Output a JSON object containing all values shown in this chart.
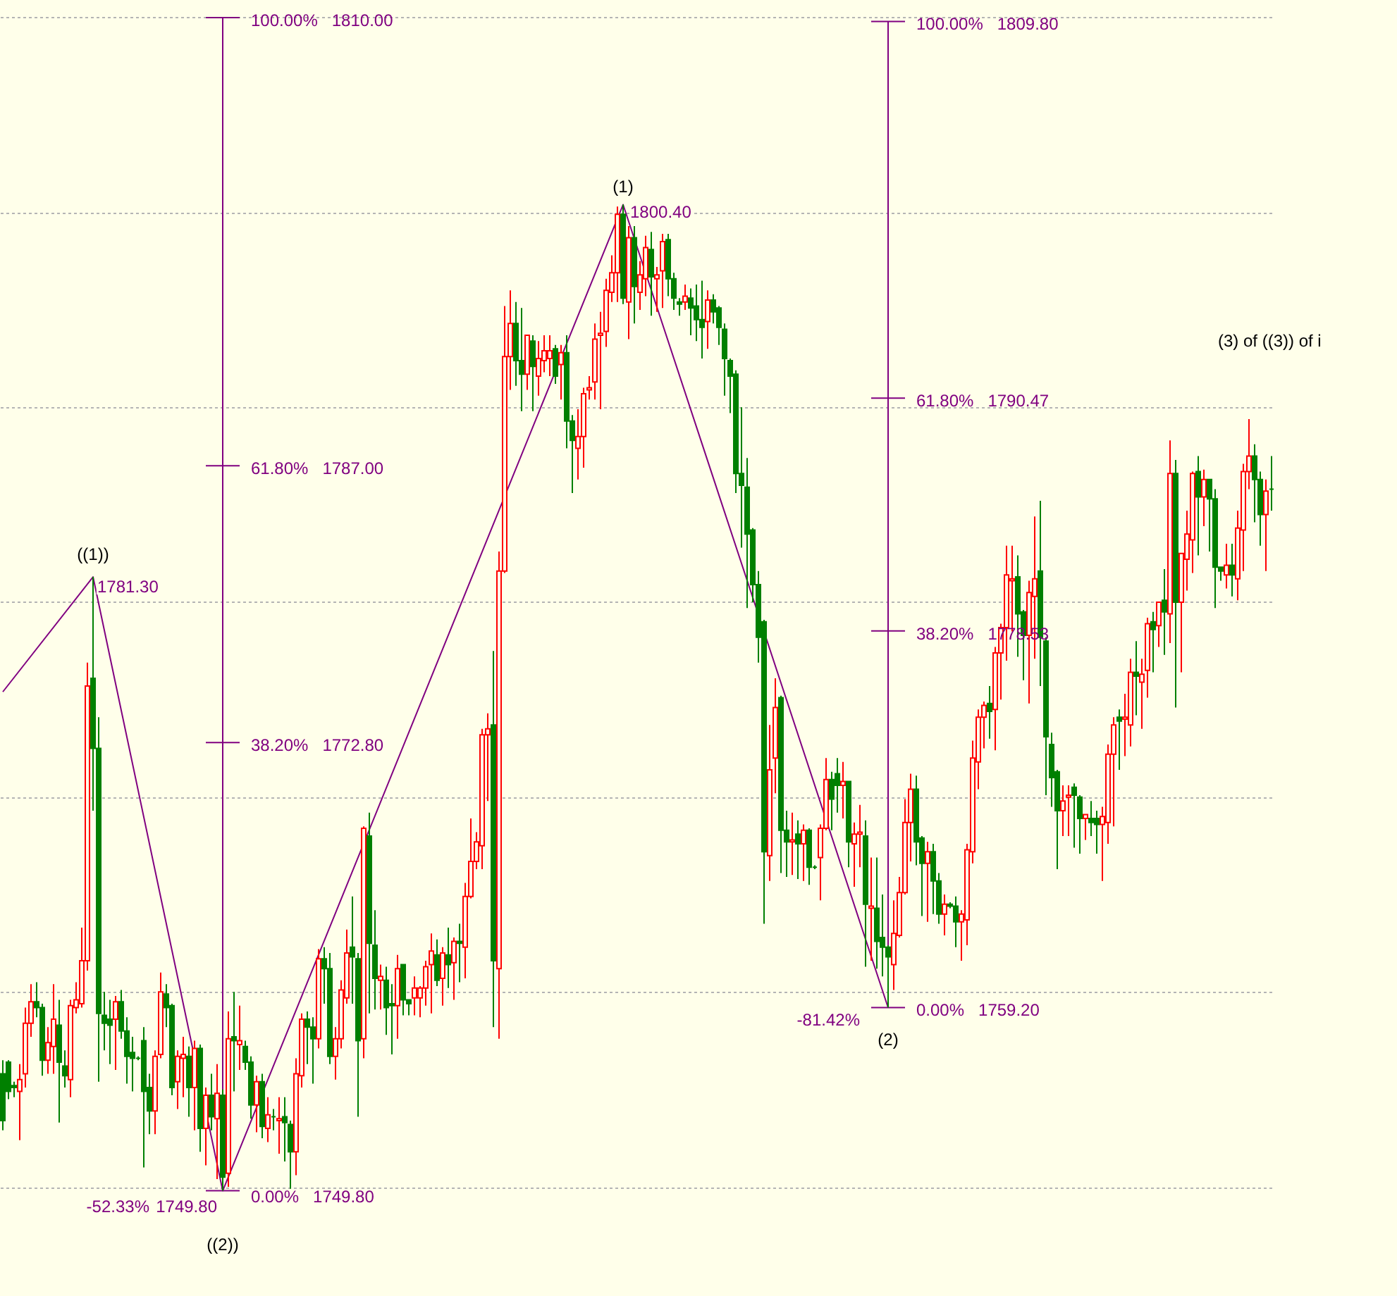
{
  "chart_data": {
    "type": "candlestick",
    "categories": [
      null,
      null,
      null,
      null,
      null,
      null,
      null,
      null,
      null,
      null,
      null,
      null,
      null,
      null,
      null,
      null,
      null,
      null,
      null,
      null,
      null,
      null,
      null,
      null,
      null,
      null,
      null,
      null,
      null,
      null,
      null,
      null,
      null,
      null,
      null,
      null,
      null,
      null,
      null,
      null,
      null,
      null,
      null,
      null,
      null,
      null,
      null,
      null,
      null,
      null,
      null,
      null,
      null,
      null,
      null,
      null,
      null,
      null,
      null,
      null,
      null,
      null,
      null,
      null,
      null,
      null,
      null,
      null,
      null,
      null,
      null,
      null,
      null,
      null,
      null,
      null,
      null,
      null,
      null,
      null,
      null,
      null,
      null,
      null,
      null,
      null,
      null,
      null,
      null,
      null,
      null,
      null,
      null,
      null,
      null,
      null,
      null,
      null,
      null,
      null,
      null,
      null,
      null,
      null,
      null,
      null,
      null,
      null,
      null,
      null,
      null,
      null,
      null,
      null,
      null,
      null,
      null,
      null,
      null,
      null,
      null,
      null,
      null,
      null,
      null,
      null,
      null,
      null,
      null,
      null,
      null,
      null,
      null,
      null,
      null,
      null,
      null,
      null,
      null,
      null,
      null,
      null,
      null,
      null,
      null,
      null,
      null,
      null,
      null,
      null,
      null,
      null,
      null,
      null,
      null,
      null,
      null,
      null,
      null,
      null,
      null,
      null,
      null,
      null,
      null,
      null,
      null,
      null,
      null,
      null,
      null,
      null,
      null,
      null,
      null,
      null,
      null,
      null,
      null,
      null,
      null,
      null,
      null,
      null,
      null,
      null,
      null,
      null,
      null,
      null,
      null,
      null,
      null,
      null,
      null,
      null,
      null,
      null,
      null,
      null,
      null,
      null,
      null,
      null,
      null,
      null,
      null,
      null,
      null,
      null,
      null,
      null,
      null,
      null,
      null,
      null,
      null,
      null,
      null,
      null,
      null,
      null,
      null,
      null,
      null,
      null
    ],
    "ohlc": [
      [
        1755.8,
        1756.5,
        1752.9,
        1753.4
      ],
      [
        1756.4,
        1756.5,
        1754.5,
        1754.9
      ],
      [
        1755.2,
        1755.4,
        1754.6,
        1755.1
      ],
      [
        1754.9,
        1756.3,
        1752.4,
        1755.5
      ],
      [
        1755.8,
        1759.2,
        1755.1,
        1758.4
      ],
      [
        1758.4,
        1760.4,
        1757.7,
        1759.5
      ],
      [
        1759.5,
        1760.5,
        1758.7,
        1759.2
      ],
      [
        1759.2,
        1759.4,
        1755.7,
        1756.5
      ],
      [
        1756.5,
        1758.2,
        1755.8,
        1757.4
      ],
      [
        1757.2,
        1760.4,
        1755.8,
        1758.6
      ],
      [
        1758.3,
        1759.6,
        1753.3,
        1756.4
      ],
      [
        1756.2,
        1757.0,
        1755.1,
        1755.7
      ],
      [
        1755.5,
        1759.6,
        1754.6,
        1759.3
      ],
      [
        1759.2,
        1760.5,
        1758.9,
        1759.6
      ],
      [
        1759.4,
        1763.3,
        1759.2,
        1761.6
      ],
      [
        1761.6,
        1776.9,
        1761.1,
        1775.7
      ],
      [
        1776.1,
        1781.3,
        1769.3,
        1772.5
      ],
      [
        1772.5,
        1774.1,
        1755.4,
        1758.9
      ],
      [
        1758.8,
        1760.0,
        1757.0,
        1758.4
      ],
      [
        1758.6,
        1759.6,
        1756.3,
        1758.3
      ],
      [
        1758.6,
        1759.8,
        1756.0,
        1759.5
      ],
      [
        1759.5,
        1760.1,
        1757.6,
        1758.0
      ],
      [
        1758.0,
        1758.7,
        1755.3,
        1756.7
      ],
      [
        1756.9,
        1757.7,
        1754.9,
        1756.6
      ],
      [
        1756.6,
        1756.7,
        1756.5,
        1756.6
      ],
      [
        1757.5,
        1758.2,
        1751.0,
        1754.9
      ],
      [
        1755.1,
        1755.8,
        1752.7,
        1753.9
      ],
      [
        1753.9,
        1757.0,
        1752.7,
        1756.7
      ],
      [
        1756.8,
        1761.0,
        1756.6,
        1760.0
      ],
      [
        1759.9,
        1760.4,
        1758.2,
        1759.2
      ],
      [
        1759.3,
        1759.4,
        1754.7,
        1755.1
      ],
      [
        1755.4,
        1757.0,
        1754.0,
        1756.7
      ],
      [
        1756.6,
        1757.7,
        1754.6,
        1756.8
      ],
      [
        1756.7,
        1757.2,
        1753.6,
        1755.1
      ],
      [
        1755.1,
        1757.5,
        1752.9,
        1757.1
      ],
      [
        1757.1,
        1757.3,
        1751.8,
        1753.0
      ],
      [
        1753.0,
        1755.1,
        1751.1,
        1754.7
      ],
      [
        1754.7,
        1755.8,
        1752.9,
        1753.6
      ],
      [
        1753.5,
        1756.3,
        1750.4,
        1754.8
      ],
      [
        1754.7,
        1755.0,
        1749.8,
        1750.5
      ],
      [
        1750.7,
        1759.0,
        1750.0,
        1757.6
      ],
      [
        1757.7,
        1760.0,
        1754.9,
        1757.5
      ],
      [
        1757.3,
        1759.3,
        1756.0,
        1757.5
      ],
      [
        1757.2,
        1757.5,
        1756.0,
        1756.4
      ],
      [
        1756.4,
        1756.7,
        1753.5,
        1754.2
      ],
      [
        1754.2,
        1755.7,
        1752.8,
        1755.4
      ],
      [
        1755.4,
        1755.8,
        1752.5,
        1753.1
      ],
      [
        1753.0,
        1754.6,
        1752.3,
        1753.7
      ],
      [
        1753.6,
        1754.0,
        1752.9,
        1753.6
      ],
      [
        1753.4,
        1754.6,
        1751.7,
        1753.5
      ],
      [
        1753.6,
        1754.6,
        1751.3,
        1753.3
      ],
      [
        1753.2,
        1753.4,
        1749.9,
        1751.8
      ],
      [
        1751.8,
        1756.6,
        1750.6,
        1755.8
      ],
      [
        1755.7,
        1758.9,
        1755.1,
        1758.6
      ],
      [
        1758.6,
        1759.0,
        1756.3,
        1758.2
      ],
      [
        1758.2,
        1758.7,
        1755.3,
        1757.6
      ],
      [
        1757.6,
        1762.2,
        1757.1,
        1761.7
      ],
      [
        1761.7,
        1762.3,
        1759.4,
        1761.2
      ],
      [
        1761.2,
        1762.0,
        1756.3,
        1756.7
      ],
      [
        1756.7,
        1758.2,
        1755.5,
        1757.6
      ],
      [
        1757.6,
        1760.6,
        1757.1,
        1760.1
      ],
      [
        1759.7,
        1763.2,
        1759.4,
        1762.0
      ],
      [
        1762.3,
        1764.9,
        1759.4,
        1761.8
      ],
      [
        1761.7,
        1762.0,
        1753.6,
        1757.5
      ],
      [
        1757.6,
        1768.5,
        1756.6,
        1768.4
      ],
      [
        1768.0,
        1769.2,
        1758.9,
        1762.5
      ],
      [
        1762.4,
        1764.2,
        1759.1,
        1760.7
      ],
      [
        1760.6,
        1761.4,
        1759.1,
        1760.8
      ],
      [
        1760.6,
        1761.3,
        1757.8,
        1759.2
      ],
      [
        1759.4,
        1760.4,
        1756.8,
        1759.3
      ],
      [
        1759.3,
        1761.9,
        1757.6,
        1761.2
      ],
      [
        1761.4,
        1761.4,
        1758.8,
        1759.6
      ],
      [
        1759.6,
        1759.6,
        1758.8,
        1759.4
      ],
      [
        1759.7,
        1760.8,
        1758.8,
        1760.2
      ],
      [
        1759.7,
        1760.3,
        1758.7,
        1760.2
      ],
      [
        1760.2,
        1761.6,
        1759.3,
        1761.3
      ],
      [
        1761.4,
        1763.0,
        1758.9,
        1762.1
      ],
      [
        1761.9,
        1762.7,
        1760.3,
        1760.6
      ],
      [
        1760.7,
        1762.3,
        1759.3,
        1762.0
      ],
      [
        1761.9,
        1763.3,
        1760.2,
        1761.4
      ],
      [
        1761.5,
        1762.8,
        1759.6,
        1762.6
      ],
      [
        1762.6,
        1763.5,
        1760.5,
        1762.5
      ],
      [
        1762.3,
        1765.6,
        1760.7,
        1764.9
      ],
      [
        1764.9,
        1768.9,
        1764.8,
        1766.7
      ],
      [
        1766.7,
        1768.2,
        1766.3,
        1767.7
      ],
      [
        1767.5,
        1773.5,
        1766.3,
        1773.2
      ],
      [
        1773.2,
        1774.3,
        1769.8,
        1773.5
      ],
      [
        1773.7,
        1777.5,
        1758.2,
        1761.6
      ],
      [
        1761.2,
        1782.6,
        1757.6,
        1781.6
      ],
      [
        1781.6,
        1795.2,
        1781.5,
        1792.6
      ],
      [
        1792.6,
        1796.0,
        1790.9,
        1794.3
      ],
      [
        1794.3,
        1795.4,
        1791.1,
        1792.4
      ],
      [
        1792.4,
        1795.1,
        1789.8,
        1791.7
      ],
      [
        1791.7,
        1793.7,
        1790.9,
        1793.7
      ],
      [
        1793.4,
        1793.7,
        1789.8,
        1792.1
      ],
      [
        1791.6,
        1793.4,
        1790.6,
        1792.5
      ],
      [
        1792.4,
        1793.7,
        1791.8,
        1792.9
      ],
      [
        1792.5,
        1793.7,
        1791.6,
        1792.9
      ],
      [
        1793.0,
        1793.2,
        1791.2,
        1791.6
      ],
      [
        1792.2,
        1793.2,
        1790.4,
        1792.8
      ],
      [
        1792.8,
        1793.7,
        1787.9,
        1789.3
      ],
      [
        1789.3,
        1789.6,
        1785.6,
        1788.3
      ],
      [
        1787.9,
        1789.9,
        1786.3,
        1788.5
      ],
      [
        1788.5,
        1791.0,
        1786.9,
        1790.7
      ],
      [
        1790.9,
        1791.6,
        1790.4,
        1791.0
      ],
      [
        1791.3,
        1794.3,
        1790.4,
        1793.5
      ],
      [
        1793.7,
        1794.9,
        1789.9,
        1793.8
      ],
      [
        1793.9,
        1796.6,
        1793.1,
        1796.0
      ],
      [
        1795.9,
        1797.8,
        1795.4,
        1796.9
      ],
      [
        1796.9,
        1800.3,
        1795.4,
        1799.9
      ],
      [
        1799.9,
        1800.4,
        1795.3,
        1795.6
      ],
      [
        1795.4,
        1799.3,
        1793.5,
        1798.7
      ],
      [
        1798.7,
        1799.3,
        1794.3,
        1796.2
      ],
      [
        1795.9,
        1797.5,
        1795.0,
        1796.8
      ],
      [
        1796.6,
        1798.8,
        1795.7,
        1798.2
      ],
      [
        1798.1,
        1799.0,
        1794.7,
        1796.7
      ],
      [
        1796.6,
        1797.2,
        1794.9,
        1796.8
      ],
      [
        1797.0,
        1798.9,
        1795.1,
        1798.5
      ],
      [
        1798.6,
        1798.9,
        1795.7,
        1796.6
      ],
      [
        1796.6,
        1796.9,
        1795.0,
        1795.6
      ],
      [
        1795.4,
        1795.6,
        1794.7,
        1795.3
      ],
      [
        1795.4,
        1796.3,
        1795.0,
        1795.7
      ],
      [
        1795.6,
        1796.1,
        1793.7,
        1795.1
      ],
      [
        1795.2,
        1796.3,
        1793.4,
        1794.5
      ],
      [
        1794.5,
        1796.5,
        1792.5,
        1794.1
      ],
      [
        1794.4,
        1796.0,
        1793.0,
        1795.5
      ],
      [
        1795.5,
        1795.8,
        1794.3,
        1794.9
      ],
      [
        1795.1,
        1795.2,
        1793.2,
        1794.1
      ],
      [
        1794.0,
        1794.3,
        1790.6,
        1792.5
      ],
      [
        1792.4,
        1792.5,
        1789.7,
        1791.6
      ],
      [
        1791.7,
        1791.9,
        1785.6,
        1786.6
      ],
      [
        1786.6,
        1790.0,
        1782.8,
        1786.0
      ],
      [
        1785.9,
        1787.4,
        1779.7,
        1783.5
      ],
      [
        1783.7,
        1783.8,
        1780.0,
        1780.9
      ],
      [
        1780.9,
        1781.6,
        1776.9,
        1778.2
      ],
      [
        1779.0,
        1779.1,
        1763.5,
        1767.2
      ],
      [
        1767.0,
        1773.7,
        1765.7,
        1771.4
      ],
      [
        1772.0,
        1776.1,
        1770.2,
        1774.6
      ],
      [
        1775.1,
        1775.2,
        1766.1,
        1768.3
      ],
      [
        1768.3,
        1769.3,
        1765.9,
        1767.7
      ],
      [
        1767.7,
        1769.2,
        1766.0,
        1767.8
      ],
      [
        1768.1,
        1768.8,
        1765.8,
        1767.6
      ],
      [
        1767.6,
        1768.6,
        1765.7,
        1768.3
      ],
      [
        1768.3,
        1768.4,
        1765.5,
        1766.4
      ],
      [
        1766.4,
        1766.5,
        1766.3,
        1766.4
      ],
      [
        1766.9,
        1768.6,
        1764.7,
        1768.4
      ],
      [
        1768.4,
        1772.0,
        1768.3,
        1770.9
      ],
      [
        1770.9,
        1771.3,
        1768.3,
        1769.9
      ],
      [
        1771.2,
        1772.0,
        1769.2,
        1770.6
      ],
      [
        1770.6,
        1771.8,
        1768.9,
        1770.8
      ],
      [
        1770.8,
        1770.8,
        1766.4,
        1767.7
      ],
      [
        1767.6,
        1768.7,
        1765.4,
        1768.1
      ],
      [
        1768.1,
        1769.6,
        1766.4,
        1768.2
      ],
      [
        1768.0,
        1768.8,
        1761.3,
        1764.5
      ],
      [
        1764.3,
        1766.9,
        1761.6,
        1764.4
      ],
      [
        1764.3,
        1766.9,
        1761.2,
        1762.6
      ],
      [
        1762.8,
        1765.0,
        1760.8,
        1762.3
      ],
      [
        1762.3,
        1762.4,
        1759.2,
        1761.8
      ],
      [
        1761.4,
        1764.7,
        1760.1,
        1763.0
      ],
      [
        1762.9,
        1765.9,
        1762.8,
        1765.1
      ],
      [
        1765.1,
        1769.9,
        1765.0,
        1768.7
      ],
      [
        1768.7,
        1771.2,
        1766.7,
        1770.4
      ],
      [
        1770.4,
        1771.1,
        1766.5,
        1767.7
      ],
      [
        1767.9,
        1768.0,
        1763.9,
        1766.6
      ],
      [
        1766.6,
        1767.7,
        1763.6,
        1767.2
      ],
      [
        1767.2,
        1767.6,
        1764.0,
        1765.7
      ],
      [
        1765.7,
        1766.1,
        1763.5,
        1764.0
      ],
      [
        1764.0,
        1765.0,
        1762.9,
        1764.5
      ],
      [
        1764.5,
        1764.6,
        1764.3,
        1764.4
      ],
      [
        1764.4,
        1764.9,
        1762.3,
        1763.6
      ],
      [
        1763.6,
        1764.2,
        1761.6,
        1764.0
      ],
      [
        1763.7,
        1767.6,
        1762.4,
        1767.3
      ],
      [
        1767.2,
        1772.9,
        1766.6,
        1772.0
      ],
      [
        1771.8,
        1774.5,
        1770.4,
        1774.1
      ],
      [
        1774.1,
        1774.9,
        1772.5,
        1774.7
      ],
      [
        1774.8,
        1775.7,
        1773.0,
        1774.4
      ],
      [
        1774.5,
        1777.7,
        1772.4,
        1777.4
      ],
      [
        1777.4,
        1778.9,
        1775.0,
        1778.7
      ],
      [
        1778.7,
        1782.9,
        1777.0,
        1781.4
      ],
      [
        1781.1,
        1782.9,
        1778.5,
        1781.2
      ],
      [
        1781.3,
        1782.4,
        1777.2,
        1779.4
      ],
      [
        1779.5,
        1779.6,
        1776.0,
        1778.3
      ],
      [
        1778.3,
        1781.1,
        1774.8,
        1780.5
      ],
      [
        1780.3,
        1784.4,
        1777.1,
        1781.2
      ],
      [
        1781.6,
        1785.2,
        1775.7,
        1778.2
      ],
      [
        1778.0,
        1778.2,
        1770.1,
        1773.1
      ],
      [
        1772.7,
        1773.3,
        1769.5,
        1771.0
      ],
      [
        1771.3,
        1771.4,
        1766.3,
        1769.3
      ],
      [
        1769.3,
        1770.6,
        1768.0,
        1769.8
      ],
      [
        1770.0,
        1770.6,
        1768.0,
        1770.1
      ],
      [
        1770.5,
        1770.7,
        1767.4,
        1770.1
      ],
      [
        1770.0,
        1770.1,
        1767.1,
        1768.9
      ],
      [
        1768.9,
        1769.1,
        1767.8,
        1769.1
      ],
      [
        1768.9,
        1769.8,
        1768.0,
        1768.7
      ],
      [
        1768.9,
        1769.3,
        1767.1,
        1768.6
      ],
      [
        1768.6,
        1769.5,
        1765.7,
        1769.0
      ],
      [
        1768.7,
        1772.7,
        1767.6,
        1772.2
      ],
      [
        1772.2,
        1774.1,
        1768.5,
        1773.7
      ],
      [
        1774.1,
        1774.5,
        1771.4,
        1773.9
      ],
      [
        1774.0,
        1775.3,
        1772.1,
        1774.1
      ],
      [
        1773.7,
        1777.1,
        1772.6,
        1776.4
      ],
      [
        1776.4,
        1778.0,
        1774.2,
        1776.2
      ],
      [
        1775.9,
        1777.1,
        1773.5,
        1776.3
      ],
      [
        1776.5,
        1779.2,
        1775.1,
        1778.9
      ],
      [
        1779.0,
        1779.5,
        1776.4,
        1778.6
      ],
      [
        1778.8,
        1780.0,
        1777.7,
        1780.0
      ],
      [
        1780.1,
        1781.7,
        1777.3,
        1779.5
      ],
      [
        1779.4,
        1788.3,
        1777.9,
        1786.6
      ],
      [
        1786.6,
        1787.3,
        1774.6,
        1780.0
      ],
      [
        1780.0,
        1782.5,
        1776.4,
        1782.5
      ],
      [
        1782.2,
        1784.7,
        1780.6,
        1783.5
      ],
      [
        1783.2,
        1786.7,
        1781.5,
        1786.6
      ],
      [
        1786.7,
        1787.5,
        1782.4,
        1785.4
      ],
      [
        1785.4,
        1786.8,
        1783.9,
        1786.3
      ],
      [
        1786.3,
        1786.3,
        1782.6,
        1785.3
      ],
      [
        1785.3,
        1785.8,
        1779.7,
        1781.8
      ],
      [
        1781.8,
        1781.8,
        1781.1,
        1781.6
      ],
      [
        1781.4,
        1783.0,
        1780.7,
        1781.9
      ],
      [
        1781.9,
        1783.0,
        1780.3,
        1781.4
      ],
      [
        1781.2,
        1784.7,
        1780.1,
        1783.8
      ],
      [
        1783.7,
        1787.1,
        1781.6,
        1786.7
      ],
      [
        1786.7,
        1789.4,
        1785.8,
        1787.5
      ],
      [
        1787.5,
        1788.1,
        1784.1,
        1786.3
      ],
      [
        1786.3,
        1786.7,
        1782.9,
        1784.5
      ],
      [
        1784.5,
        1786.3,
        1781.6,
        1785.7
      ],
      [
        1785.8,
        1787.5,
        1784.7,
        1785.8
      ]
    ],
    "colors": [
      "#008000",
      "#008000",
      "#008000",
      "#ff0000",
      "#ff0000",
      "#ff0000",
      "#008000",
      "#008000",
      "#ff0000",
      "#ff0000",
      "#008000",
      "#008000",
      "#ff0000",
      "#ff0000",
      "#ff0000",
      "#ff0000",
      "#008000",
      "#008000",
      "#008000",
      "#008000",
      "#ff0000",
      "#008000",
      "#008000",
      "#008000",
      "#008000",
      "#008000",
      "#008000",
      "#ff0000",
      "#ff0000",
      "#008000",
      "#008000",
      "#ff0000",
      "#ff0000",
      "#008000",
      "#ff0000",
      "#008000",
      "#ff0000",
      "#008000",
      "#ff0000",
      "#008000",
      "#ff0000",
      "#008000",
      "#ff0000",
      "#008000",
      "#008000",
      "#ff0000",
      "#008000",
      "#ff0000",
      "#008000",
      "#ff0000",
      "#008000",
      "#008000",
      "#ff0000",
      "#ff0000",
      "#008000",
      "#008000",
      "#ff0000",
      "#008000",
      "#008000",
      "#ff0000",
      "#ff0000",
      "#ff0000",
      "#008000",
      "#008000",
      "#ff0000",
      "#008000",
      "#008000",
      "#ff0000",
      "#008000",
      "#008000",
      "#ff0000",
      "#008000",
      "#008000",
      "#ff0000",
      "#ff0000",
      "#ff0000",
      "#ff0000",
      "#008000",
      "#ff0000",
      "#008000",
      "#ff0000",
      "#008000",
      "#ff0000",
      "#ff0000",
      "#ff0000",
      "#ff0000",
      "#ff0000",
      "#008000",
      "#ff0000",
      "#ff0000",
      "#ff0000",
      "#008000",
      "#008000",
      "#ff0000",
      "#008000",
      "#ff0000",
      "#ff0000",
      "#ff0000",
      "#008000",
      "#ff0000",
      "#008000",
      "#008000",
      "#ff0000",
      "#ff0000",
      "#ff0000",
      "#ff0000",
      "#ff0000",
      "#ff0000",
      "#ff0000",
      "#ff0000",
      "#008000",
      "#ff0000",
      "#008000",
      "#ff0000",
      "#ff0000",
      "#008000",
      "#ff0000",
      "#ff0000",
      "#008000",
      "#008000",
      "#008000",
      "#ff0000",
      "#008000",
      "#008000",
      "#008000",
      "#ff0000",
      "#008000",
      "#008000",
      "#008000",
      "#008000",
      "#008000",
      "#008000",
      "#008000",
      "#008000",
      "#008000",
      "#008000",
      "#ff0000",
      "#ff0000",
      "#008000",
      "#008000",
      "#ff0000",
      "#008000",
      "#ff0000",
      "#008000",
      "#008000",
      "#ff0000",
      "#ff0000",
      "#008000",
      "#008000",
      "#ff0000",
      "#008000",
      "#ff0000",
      "#ff0000",
      "#008000",
      "#ff0000",
      "#008000",
      "#008000",
      "#008000",
      "#ff0000",
      "#ff0000",
      "#ff0000",
      "#ff0000",
      "#008000",
      "#008000",
      "#ff0000",
      "#008000",
      "#008000",
      "#ff0000",
      "#008000",
      "#008000",
      "#ff0000",
      "#ff0000",
      "#ff0000",
      "#ff0000",
      "#ff0000",
      "#008000",
      "#ff0000",
      "#ff0000",
      "#ff0000",
      "#ff0000",
      "#008000",
      "#008000",
      "#ff0000",
      "#ff0000",
      "#008000",
      "#008000",
      "#008000",
      "#008000",
      "#ff0000",
      "#ff0000",
      "#008000",
      "#008000",
      "#ff0000",
      "#008000",
      "#008000",
      "#ff0000",
      "#ff0000",
      "#ff0000",
      "#008000",
      "#ff0000",
      "#ff0000",
      "#008000",
      "#ff0000",
      "#ff0000",
      "#008000",
      "#ff0000",
      "#008000",
      "#ff0000",
      "#008000",
      "#ff0000",
      "#ff0000",
      "#ff0000",
      "#008000",
      "#ff0000",
      "#008000",
      "#008000",
      "#008000",
      "#ff0000",
      "#008000",
      "#ff0000",
      "#ff0000",
      "#ff0000",
      "#008000",
      "#008000",
      "#ff0000",
      "#008000"
    ],
    "series": [
      {
        "type": "line",
        "color": "#800080",
        "values": [
          1775.4,
          null,
          null,
          null,
          null,
          null,
          null,
          null,
          null,
          null,
          null,
          null,
          null,
          null,
          null,
          null,
          1781.3,
          null,
          null,
          null,
          null,
          null,
          null,
          null,
          null,
          null,
          null,
          null,
          null,
          null,
          null,
          null,
          null,
          null,
          null,
          null,
          null,
          null,
          null,
          1749.8,
          null,
          null,
          null,
          null,
          null,
          null,
          null,
          null,
          null,
          null,
          null,
          null,
          null,
          null,
          null,
          null,
          null,
          null,
          null,
          null,
          null,
          null,
          null,
          null,
          null,
          null,
          null,
          null,
          null,
          null,
          null,
          null,
          null,
          null,
          null,
          null,
          null,
          null,
          null,
          null,
          null,
          null,
          null,
          null,
          null,
          null,
          null,
          null,
          null,
          null,
          null,
          null,
          null,
          null,
          null,
          null,
          null,
          null,
          null,
          null,
          null,
          null,
          null,
          null,
          null,
          null,
          null,
          null,
          null,
          null,
          1800.4,
          null,
          null,
          null,
          null,
          null,
          null,
          null,
          null,
          null,
          null,
          null,
          null,
          null,
          null,
          null,
          null,
          null,
          null,
          null,
          null,
          null,
          null,
          null,
          null,
          null,
          null,
          null,
          null,
          null,
          null,
          null,
          null,
          null,
          null,
          null,
          null,
          null,
          null,
          null,
          null,
          null,
          null,
          null,
          null,
          null,
          null,
          1759.2,
          null,
          null,
          null,
          null,
          null,
          null,
          null,
          null,
          null,
          null,
          null,
          null,
          null,
          null,
          null,
          null,
          null,
          null,
          null,
          null,
          null,
          null,
          null,
          null,
          null,
          null,
          null,
          null,
          null,
          null,
          null,
          null,
          null,
          null,
          null,
          null,
          null,
          null,
          null,
          null,
          null,
          null,
          null,
          null,
          null,
          null,
          null,
          null,
          null,
          null,
          null,
          null,
          null,
          null,
          null,
          null,
          null,
          null,
          null,
          null,
          null,
          null,
          null,
          null,
          null,
          null,
          null,
          null
        ]
      }
    ],
    "ylim": [
      1744.4,
      1810.9
    ],
    "yticks": [
      {
        "value": 1750,
        "label": null
      },
      {
        "value": 1760,
        "label": null
      },
      {
        "value": 1770,
        "label": null
      },
      {
        "value": 1780,
        "label": null
      },
      {
        "value": 1790,
        "label": null
      },
      {
        "value": 1800,
        "label": null
      },
      {
        "value": 1810,
        "label": null
      }
    ],
    "grid": "y",
    "ref_lines": [
      {
        "axis": "y",
        "value": 1810,
        "label": "100.00%   1810.00"
      },
      {
        "axis": "y",
        "value": 1787,
        "label": "61.80%   1787.00"
      },
      {
        "axis": "y",
        "value": 1772.8,
        "label": "38.20%   1772.80"
      },
      {
        "axis": "y",
        "value": 1749.8,
        "label": "0.00%   1749.80"
      },
      {
        "axis": "y",
        "value": 1809.8,
        "label": "100.00%   1809.80"
      },
      {
        "axis": "y",
        "value": 1790.47,
        "label": "61.80%   1790.47"
      },
      {
        "axis": "y",
        "value": 1778.53,
        "label": "38.20%   1778.53"
      },
      {
        "axis": "y",
        "value": 1759.2,
        "label": "0.00%   1759.20"
      }
    ],
    "annotations": [
      "((1))",
      "1781.30",
      "((2))",
      "-52.33%",
      "1749.80",
      "(1)",
      "1800.40",
      "(2)",
      "-81.42%",
      "(3) of ((3)) of i"
    ]
  }
}
